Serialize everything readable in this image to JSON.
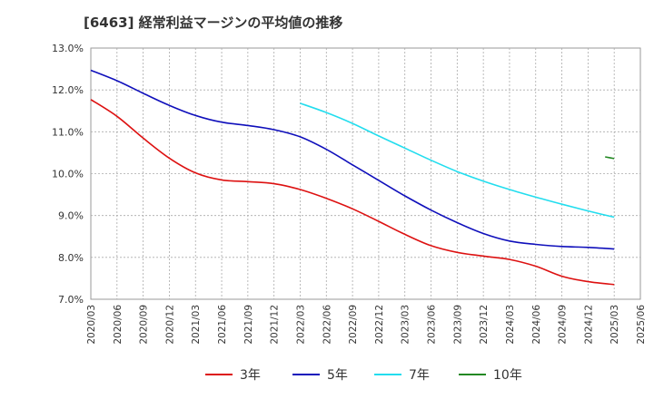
{
  "chart_data": {
    "type": "line",
    "title": "[6463]  経常利益マージンの平均値の推移",
    "xlabel": "",
    "ylabel": "",
    "ylim": [
      7.0,
      13.0
    ],
    "yticks": [
      "7.0%",
      "8.0%",
      "9.0%",
      "10.0%",
      "11.0%",
      "12.0%",
      "13.0%"
    ],
    "yticks_values": [
      7,
      8,
      9,
      10,
      11,
      12,
      13
    ],
    "x": [
      "2020/03",
      "2020/06",
      "2020/09",
      "2020/12",
      "2021/03",
      "2021/06",
      "2021/09",
      "2021/12",
      "2022/03",
      "2022/06",
      "2022/09",
      "2022/12",
      "2023/03",
      "2023/06",
      "2023/09",
      "2023/12",
      "2024/03",
      "2024/06",
      "2024/09",
      "2024/12",
      "2025/03",
      "2025/06"
    ],
    "grid": true,
    "legend_position": "bottom",
    "series": [
      {
        "name": "3年",
        "color": "#dd1111",
        "values": [
          11.77,
          11.37,
          10.85,
          10.37,
          10.02,
          9.85,
          9.81,
          9.76,
          9.62,
          9.41,
          9.16,
          8.86,
          8.55,
          8.28,
          8.12,
          8.03,
          7.95,
          7.79,
          7.55,
          7.42,
          7.35,
          null
        ]
      },
      {
        "name": "5年",
        "color": "#0f0fbb",
        "values": [
          12.47,
          12.22,
          11.92,
          11.63,
          11.39,
          11.23,
          11.15,
          11.05,
          10.88,
          10.58,
          10.21,
          9.84,
          9.47,
          9.13,
          8.83,
          8.57,
          8.39,
          8.31,
          8.26,
          8.24,
          8.2,
          null
        ]
      },
      {
        "name": "7年",
        "color": "#22ddee",
        "values": [
          null,
          null,
          null,
          null,
          null,
          null,
          null,
          null,
          11.68,
          11.46,
          11.2,
          10.9,
          10.61,
          10.32,
          10.05,
          9.82,
          9.62,
          9.44,
          9.27,
          9.11,
          8.96,
          null
        ]
      },
      {
        "name": "10年",
        "color": "#228822",
        "values": [
          null,
          null,
          null,
          null,
          null,
          null,
          null,
          null,
          null,
          null,
          null,
          null,
          null,
          null,
          null,
          null,
          null,
          null,
          null,
          null,
          10.36,
          null
        ]
      }
    ],
    "ten_year_prev_point": 10.4
  }
}
